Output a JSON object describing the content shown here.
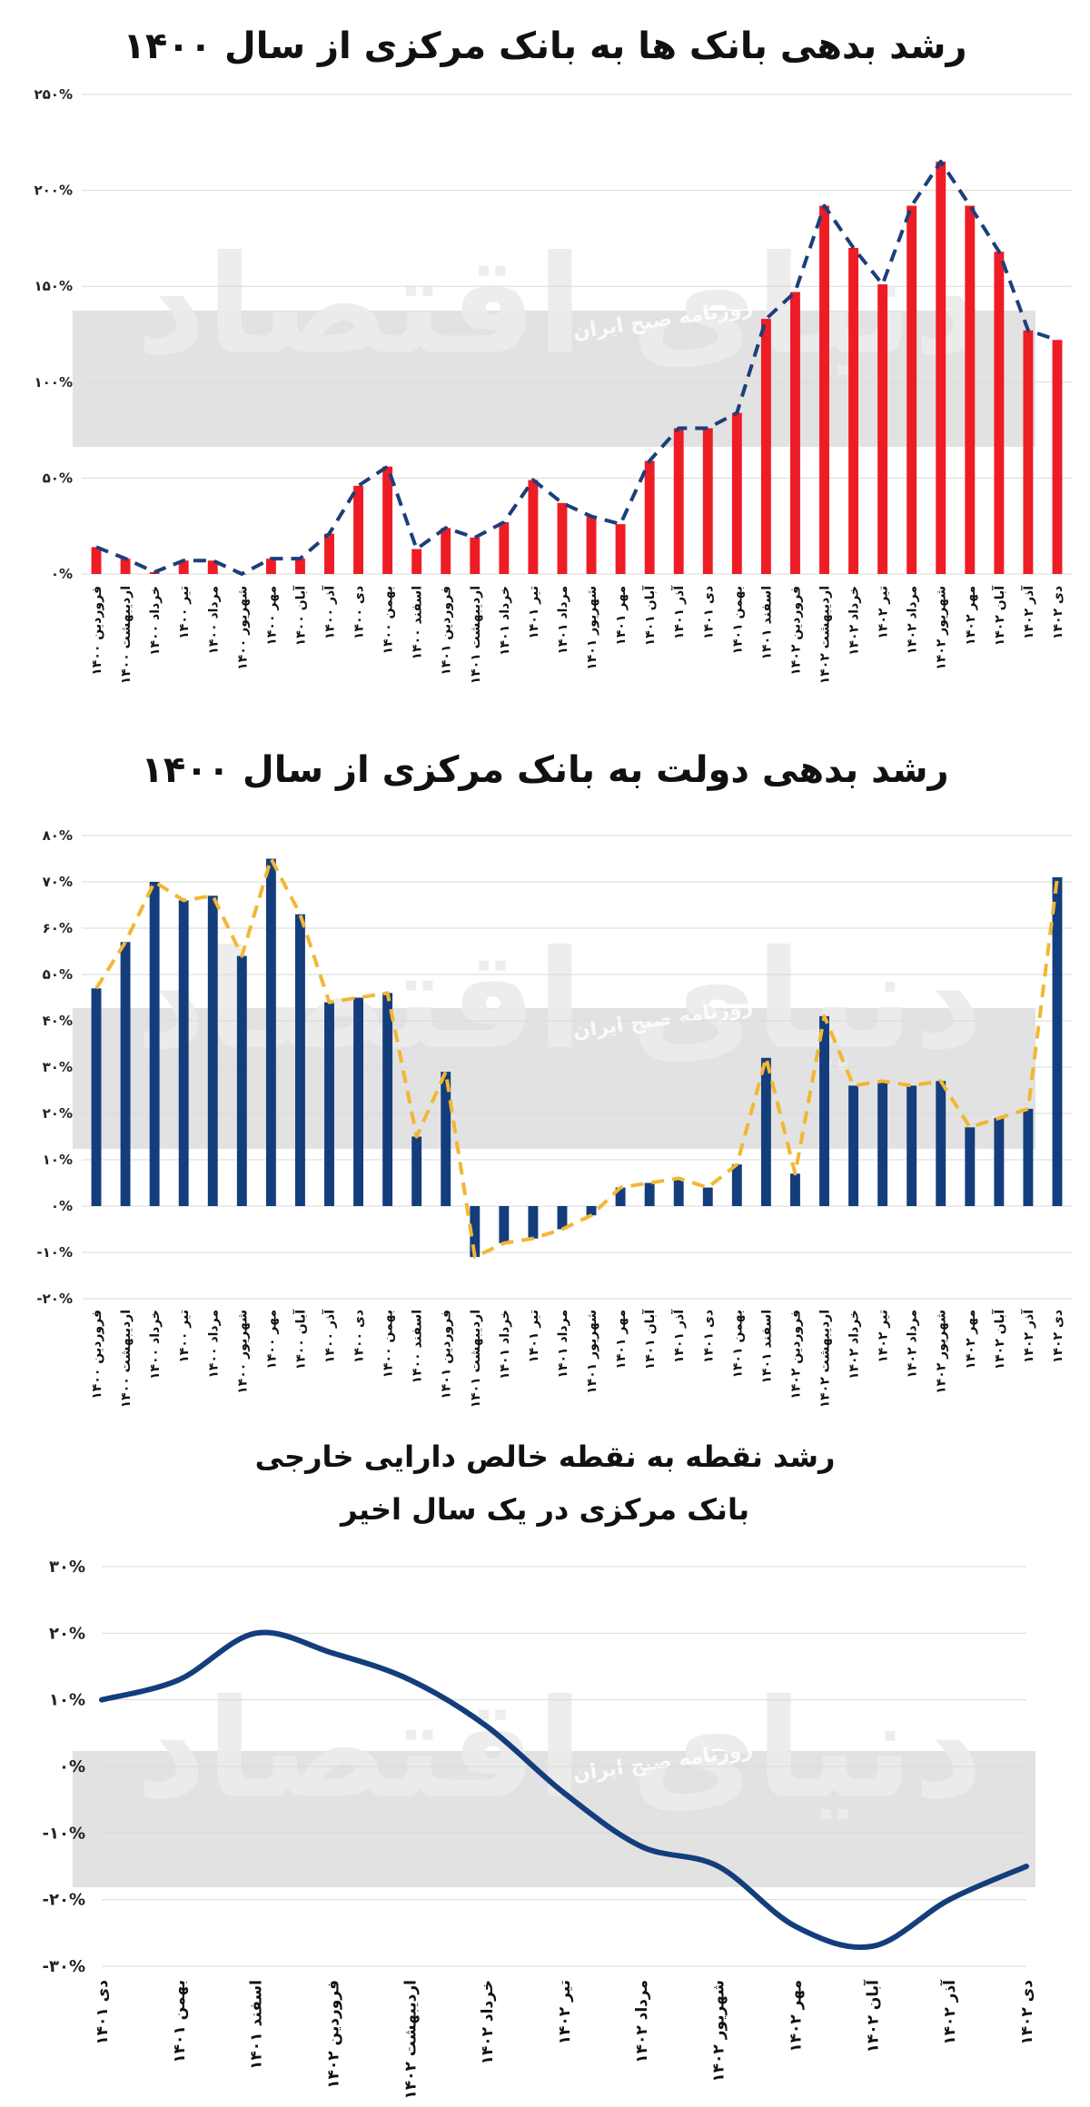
{
  "chart_data": [
    {
      "type": "bar",
      "title": "رشد بدهی بانک ها به بانک مرکزی از سال ۱۴۰۰",
      "categories": [
        "فروردین ۱۴۰۰",
        "اردیبهشت ۱۴۰۰",
        "خرداد ۱۴۰۰",
        "تیر ۱۴۰۰",
        "مرداد ۱۴۰۰",
        "شهریور ۱۴۰۰",
        "مهر ۱۴۰۰",
        "آبان ۱۴۰۰",
        "آذر ۱۴۰۰",
        "دی ۱۴۰۰",
        "بهمن ۱۴۰۰",
        "اسفند ۱۴۰۰",
        "فروردین ۱۴۰۱",
        "اردیبهشت ۱۴۰۱",
        "خرداد ۱۴۰۱",
        "تیر ۱۴۰۱",
        "مرداد ۱۴۰۱",
        "شهریور ۱۴۰۱",
        "مهر ۱۴۰۱",
        "آبان ۱۴۰۱",
        "آذر ۱۴۰۱",
        "دی ۱۴۰۱",
        "بهمن ۱۴۰۱",
        "اسفند ۱۴۰۱",
        "فروردین ۱۴۰۲",
        "اردیبهشت ۱۴۰۲",
        "خرداد ۱۴۰۲",
        "تیر ۱۴۰۲",
        "مرداد ۱۴۰۲",
        "شهریور ۱۴۰۲",
        "مهر ۱۴۰۲",
        "آبان ۱۴۰۲",
        "آذر ۱۴۰۲",
        "دی ۱۴۰۲"
      ],
      "values": [
        14,
        8,
        1,
        7,
        7,
        0,
        8,
        8,
        21,
        46,
        56,
        13,
        24,
        19,
        27,
        49,
        37,
        30,
        26,
        59,
        76,
        76,
        84,
        133,
        147,
        192,
        170,
        151,
        192,
        215,
        192,
        168,
        127,
        122
      ],
      "ylim": [
        0,
        250
      ],
      "yticks": [
        "۰%",
        "۵۰%",
        "۱۰۰%",
        "۱۵۰%",
        "۲۰۰%",
        "۲۵۰%"
      ],
      "bar_color": "#ee1c25",
      "line_color": "#1c3f7a",
      "grid": true
    },
    {
      "type": "bar",
      "title": "رشد بدهی دولت به بانک مرکزی از سال ۱۴۰۰",
      "categories": [
        "فروردین ۱۴۰۰",
        "اردیبهشت ۱۴۰۰",
        "خرداد ۱۴۰۰",
        "تیر ۱۴۰۰",
        "مرداد ۱۴۰۰",
        "شهریور ۱۴۰۰",
        "مهر ۱۴۰۰",
        "آبان ۱۴۰۰",
        "آذر ۱۴۰۰",
        "دی ۱۴۰۰",
        "بهمن ۱۴۰۰",
        "اسفند ۱۴۰۰",
        "فروردین ۱۴۰۱",
        "اردیبهشت ۱۴۰۱",
        "خرداد ۱۴۰۱",
        "تیر ۱۴۰۱",
        "مرداد ۱۴۰۱",
        "شهریور ۱۴۰۱",
        "مهر ۱۴۰۱",
        "آبان ۱۴۰۱",
        "آذر ۱۴۰۱",
        "دی ۱۴۰۱",
        "بهمن ۱۴۰۱",
        "اسفند ۱۴۰۱",
        "فروردین ۱۴۰۲",
        "اردیبهشت ۱۴۰۲",
        "خرداد ۱۴۰۲",
        "تیر ۱۴۰۲",
        "مرداد ۱۴۰۲",
        "شهریور ۱۴۰۲",
        "مهر ۱۴۰۲",
        "آبان ۱۴۰۲",
        "آذر ۱۴۰۲",
        "دی ۱۴۰۲"
      ],
      "values": [
        47,
        57,
        70,
        66,
        67,
        54,
        75,
        63,
        44,
        45,
        46,
        15,
        29,
        -11,
        -8,
        -7,
        -5,
        -2,
        4,
        5,
        6,
        4,
        9,
        32,
        7,
        41,
        26,
        27,
        26,
        27,
        17,
        19,
        21,
        71
      ],
      "ylim": [
        -20,
        80
      ],
      "yticks": [
        "-۲۰%",
        "-۱۰%",
        "۰%",
        "۱۰%",
        "۲۰%",
        "۳۰%",
        "۴۰%",
        "۵۰%",
        "۶۰%",
        "۷۰%",
        "۸۰%"
      ],
      "bar_color": "#143d7c",
      "line_color": "#f2b733",
      "grid": true
    },
    {
      "type": "line",
      "title": "رشد نقطه به نقطه خالص دارایی خارجی",
      "subtitle": "بانک مرکزی در یک سال اخیر",
      "categories": [
        "دی ۱۴۰۱",
        "بهمن ۱۴۰۱",
        "اسفند ۱۴۰۱",
        "فروردین ۱۴۰۲",
        "اردیبهشت ۱۴۰۲",
        "خرداد ۱۴۰۲",
        "تیر ۱۴۰۲",
        "مرداد ۱۴۰۲",
        "شهریور ۱۴۰۲",
        "مهر ۱۴۰۲",
        "آبان ۱۴۰۲",
        "آذر ۱۴۰۲",
        "دی ۱۴۰۲"
      ],
      "values": [
        10,
        13,
        20,
        17,
        13,
        6,
        -4,
        -12,
        -15,
        -24,
        -27,
        -20,
        -15
      ],
      "ylim": [
        -30,
        30
      ],
      "yticks": [
        "-۳۰%",
        "-۲۰%",
        "-۱۰%",
        "۰%",
        "۱۰%",
        "۲۰%",
        "۳۰%"
      ],
      "line_color": "#143d7c",
      "grid": true
    }
  ],
  "watermark": {
    "brand": "دنیای اقتصاد",
    "newspaper": "روزنامه صبح ایران"
  }
}
